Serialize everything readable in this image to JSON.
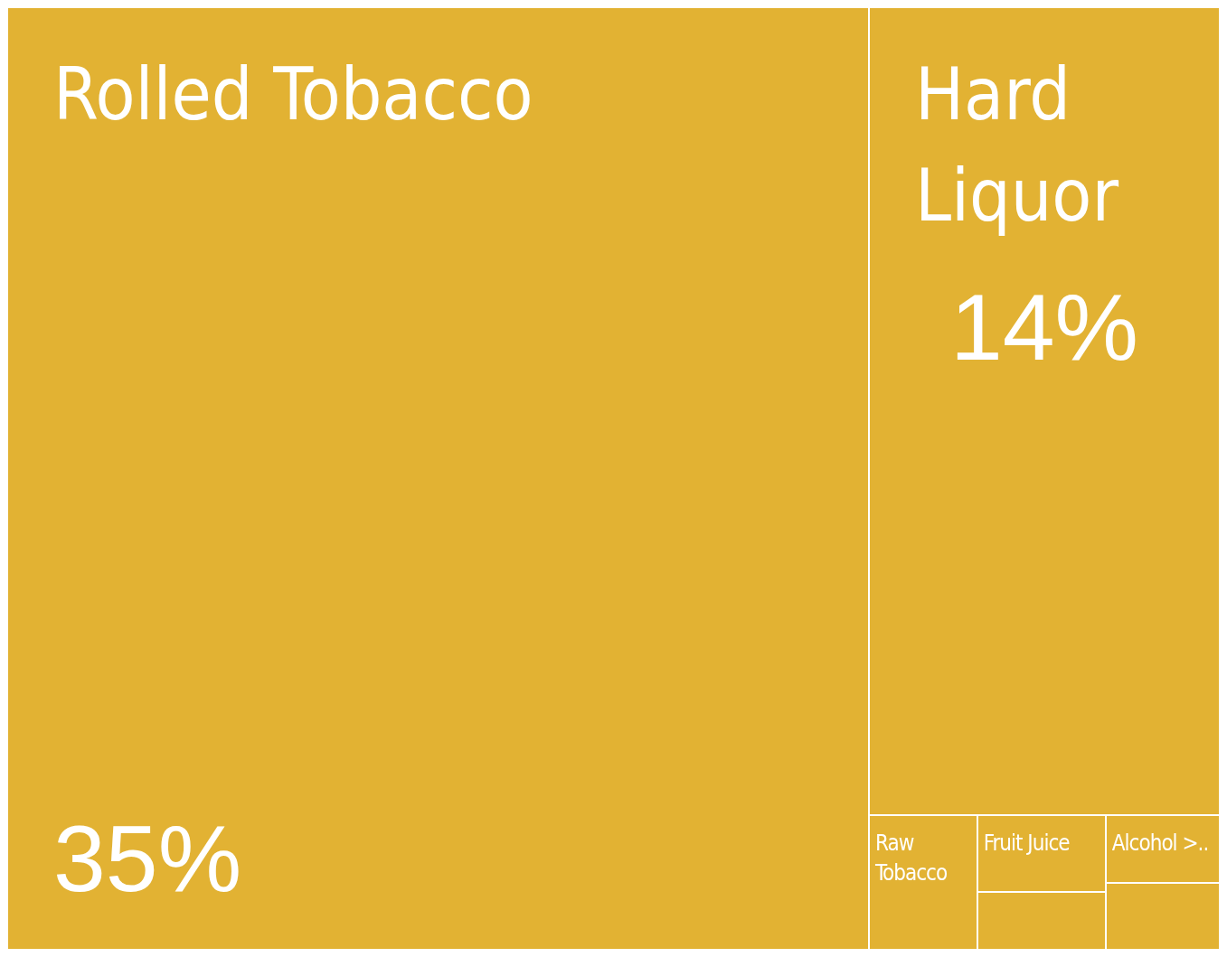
{
  "chart_data": {
    "type": "other",
    "categories": [
      "Rolled Tobacco",
      "Hard Liquor",
      "Raw Tobacco",
      "Fruit Juice",
      "Alcohol >..",
      null,
      null
    ],
    "values": [
      35,
      14,
      null,
      null,
      null,
      null,
      null
    ],
    "value_labels": [
      "35%",
      "14%",
      null,
      null,
      null,
      null,
      null
    ],
    "color": "#e2b233"
  }
}
